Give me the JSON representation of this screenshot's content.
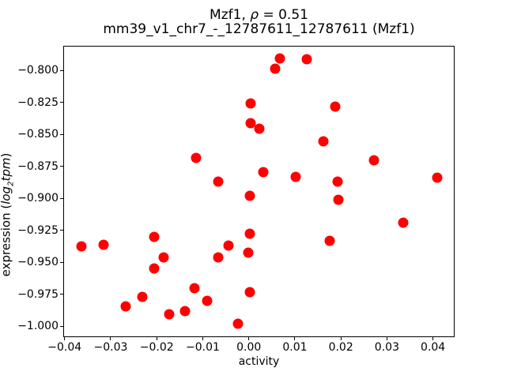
{
  "chart_data": {
    "type": "scatter",
    "title": {
      "line1_prefix": "Mzf1, ",
      "line1_rho": "ρ",
      "line1_suffix": " = 0.51",
      "line2": "mm39_v1_chr7_-_12787611_12787611 (Mzf1)"
    },
    "xlabel": "activity",
    "ylabel_parts": {
      "prefix": "expression (",
      "log": "log",
      "sub": "2",
      "tpm": "tpm",
      "suffix": ")"
    },
    "marker_color": "#ff0000",
    "grid": false,
    "legend": false,
    "xlim": [
      -0.0403,
      0.0447
    ],
    "ylim": [
      -1.0084,
      -0.7807
    ],
    "xticks": [
      -0.04,
      -0.03,
      -0.02,
      -0.01,
      0.0,
      0.01,
      0.02,
      0.03,
      0.04
    ],
    "xtick_labels": [
      "−0.04",
      "−0.03",
      "−0.02",
      "−0.01",
      "0.00",
      "0.01",
      "0.02",
      "0.03",
      "0.04"
    ],
    "yticks": [
      -0.8,
      -0.825,
      -0.85,
      -0.875,
      -0.9,
      -0.925,
      -0.95,
      -0.975,
      -1.0
    ],
    "ytick_labels": [
      "−0.800",
      "−0.825",
      "−0.850",
      "−0.875",
      "−0.900",
      "−0.925",
      "−0.950",
      "−0.975",
      "−1.000"
    ],
    "points": [
      [
        0.0004,
        -0.8257
      ],
      [
        0.0004,
        -0.8412
      ],
      [
        0.0022,
        -0.8457
      ],
      [
        -0.0114,
        -0.8683
      ],
      [
        -0.0066,
        -0.8868
      ],
      [
        0.0002,
        -0.898
      ],
      [
        0.0067,
        -0.7907
      ],
      [
        0.0057,
        -0.7988
      ],
      [
        0.0126,
        -0.7914
      ],
      [
        0.0187,
        -0.828
      ],
      [
        0.0162,
        -0.8556
      ],
      [
        0.0271,
        -0.87
      ],
      [
        0.0032,
        -0.8796
      ],
      [
        0.0102,
        -0.8831
      ],
      [
        0.0193,
        -0.887
      ],
      [
        0.041,
        -0.8835
      ],
      [
        -0.0363,
        -0.9374
      ],
      [
        -0.0316,
        -0.9362
      ],
      [
        -0.0206,
        -0.93
      ],
      [
        -0.0185,
        -0.9459
      ],
      [
        -0.0206,
        -0.9546
      ],
      [
        -0.0067,
        -0.9459
      ],
      [
        -0.0044,
        -0.9368
      ],
      [
        0.0003,
        -0.9276
      ],
      [
        -0.0001,
        -0.9424
      ],
      [
        -0.0118,
        -0.9704
      ],
      [
        -0.0231,
        -0.9768
      ],
      [
        -0.0267,
        -0.9844
      ],
      [
        -0.0173,
        -0.9907
      ],
      [
        -0.0138,
        -0.988
      ],
      [
        -0.009,
        -0.9802
      ],
      [
        -0.0024,
        -0.998
      ],
      [
        0.0003,
        -0.9733
      ],
      [
        0.0195,
        -0.901
      ],
      [
        0.0335,
        -0.9189
      ],
      [
        0.0175,
        -0.9329
      ]
    ]
  }
}
